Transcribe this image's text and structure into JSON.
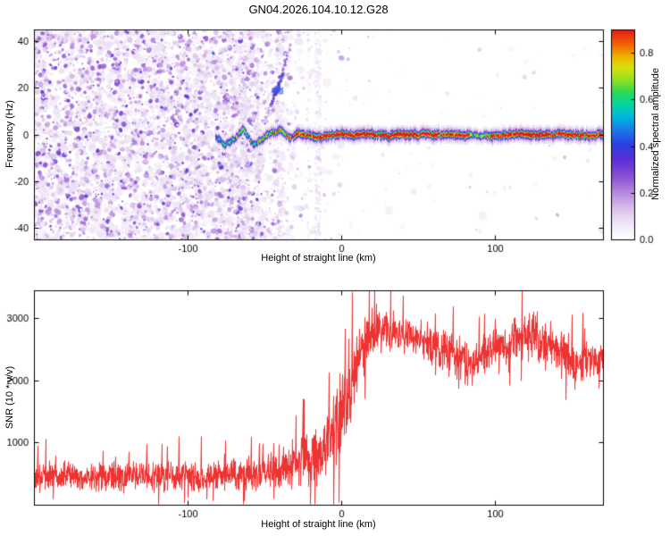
{
  "chart_data": [
    {
      "type": "heatmap",
      "title": "GN04.2026.104.10.12.G28",
      "xlabel": "Height of straight line (km)",
      "ylabel": "Frequency (Hz)",
      "xlim": [
        -200,
        170
      ],
      "ylim": [
        -45,
        45
      ],
      "xticks": [
        -100,
        0,
        100
      ],
      "yticks": [
        -40,
        -20,
        0,
        20,
        40
      ],
      "grid": false,
      "colorbar": {
        "label": "Normalized spectral amplitude",
        "ticks": [
          0.0,
          0.2,
          0.4,
          0.6,
          0.8
        ],
        "vmax": 0.9
      },
      "colormap": [
        {
          "t": 0.0,
          "c": "#ffffff"
        },
        {
          "t": 0.06,
          "c": "#f3ecf8"
        },
        {
          "t": 0.14,
          "c": "#dcc3ec"
        },
        {
          "t": 0.22,
          "c": "#b88ade"
        },
        {
          "t": 0.3,
          "c": "#8a4fd2"
        },
        {
          "t": 0.38,
          "c": "#5a2fd8"
        },
        {
          "t": 0.45,
          "c": "#2b3ee0"
        },
        {
          "t": 0.52,
          "c": "#1b78e8"
        },
        {
          "t": 0.58,
          "c": "#00b4e0"
        },
        {
          "t": 0.64,
          "c": "#00d4a8"
        },
        {
          "t": 0.7,
          "c": "#28d858"
        },
        {
          "t": 0.76,
          "c": "#90e020"
        },
        {
          "t": 0.82,
          "c": "#d8e010"
        },
        {
          "t": 0.87,
          "c": "#f0b400"
        },
        {
          "t": 0.92,
          "c": "#f07000"
        },
        {
          "t": 1.0,
          "c": "#e81818"
        }
      ],
      "noise_density": {
        "x": [
          -200,
          -65,
          -50,
          -30,
          -10,
          10,
          170
        ],
        "p": [
          1,
          1,
          0.55,
          0.25,
          0.07,
          0.02,
          0.012
        ]
      },
      "track": {
        "x": [
          -82,
          -76,
          -70,
          -64,
          -58,
          -52,
          -46,
          -40,
          -34,
          -28,
          -22,
          -16,
          -10,
          0,
          20,
          40,
          60,
          80,
          86,
          92,
          98,
          110,
          125,
          140,
          150,
          158,
          170
        ],
        "f": [
          -1,
          -4,
          -2,
          3,
          -4,
          -2,
          1,
          2,
          -1,
          1,
          0,
          -1,
          0,
          0,
          0,
          0,
          0,
          0,
          0,
          0,
          0,
          0,
          0,
          0,
          0,
          0,
          0
        ],
        "amp": [
          0.35,
          0.55,
          0.5,
          0.55,
          0.5,
          0.55,
          0.6,
          0.62,
          0.68,
          0.72,
          0.75,
          0.8,
          0.85,
          0.9,
          0.92,
          0.9,
          0.88,
          0.8,
          0.55,
          0.5,
          0.8,
          0.9,
          0.92,
          0.88,
          0.82,
          0.86,
          0.88
        ]
      },
      "features": {
        "streaks": [
          {
            "x1": -50,
            "f1": 5,
            "x2": -33,
            "f2": 38,
            "v": 0.25
          },
          {
            "x1": -46,
            "f1": 12,
            "x2": -38,
            "f2": 26,
            "v": 0.35
          }
        ],
        "blob": {
          "x": -42,
          "f": 19,
          "rx": 5,
          "ry": 3.5,
          "v": 0.45
        },
        "stripe_region": {
          "x_min": -70,
          "x_max": -8,
          "count": 22
        }
      }
    },
    {
      "type": "line",
      "xlabel": "Height of straight line (km)",
      "ylabel": "SNR (10 * v/v)",
      "color": "#ee3333",
      "xlim": [
        -200,
        170
      ],
      "ylim": [
        0,
        3450
      ],
      "xticks": [
        -100,
        0,
        100
      ],
      "yticks": [
        1000,
        2000,
        3000
      ],
      "grid": false,
      "envelope": {
        "x": [
          -200,
          -150,
          -100,
          -80,
          -70,
          -60,
          -50,
          -40,
          -30,
          -20,
          -10,
          -5,
          0,
          5,
          10,
          15,
          20,
          25,
          35,
          45,
          55,
          65,
          75,
          85,
          95,
          105,
          115,
          125,
          135,
          145,
          152,
          160,
          170
        ],
        "mean": [
          450,
          455,
          450,
          460,
          470,
          490,
          530,
          590,
          670,
          790,
          960,
          1160,
          1450,
          1800,
          2200,
          2550,
          2800,
          2850,
          2750,
          2700,
          2600,
          2500,
          2350,
          2300,
          2450,
          2550,
          2650,
          2750,
          2600,
          2450,
          2150,
          2400,
          2350
        ],
        "noise": [
          280,
          280,
          280,
          285,
          295,
          310,
          340,
          390,
          460,
          530,
          630,
          690,
          750,
          720,
          620,
          520,
          450,
          400,
          350,
          330,
          350,
          400,
          420,
          400,
          350,
          340,
          380,
          450,
          400,
          400,
          420,
          350,
          380
        ]
      }
    }
  ]
}
